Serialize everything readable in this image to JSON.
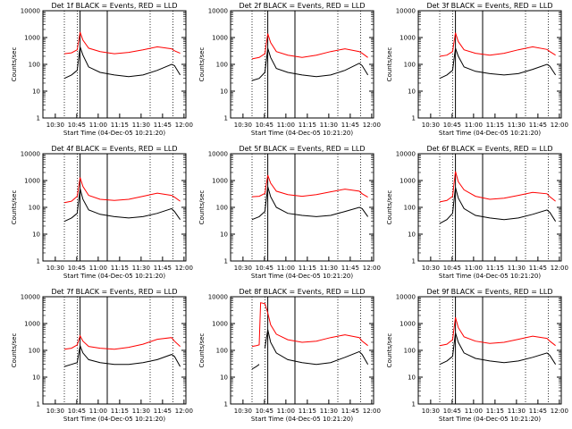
{
  "figure": {
    "title_template": "Det {n}f BLACK = Events, RED = LLD",
    "xlabel": "Start Time (04-Dec-05 10:21:20)",
    "ylabel": "Counts/sec"
  },
  "chart_data": [
    {
      "type": "line",
      "title": "Det 1f BLACK = Events, RED = LLD",
      "xlabel": "Start Time (04-Dec-05 10:21:20)",
      "ylabel": "Counts/sec",
      "yscale": "log",
      "ylim": [
        1,
        10000
      ],
      "xticks": [
        "10:30",
        "10:45",
        "11:00",
        "11:15",
        "11:30",
        "11:45",
        "12:00"
      ],
      "yticks": [
        "1",
        "10",
        "100",
        "1000",
        "10000"
      ],
      "x_minutes": [
        35,
        40,
        44,
        46,
        48,
        52,
        60,
        70,
        80,
        90,
        100,
        110,
        112,
        116
      ],
      "series": [
        {
          "name": "LLD",
          "color": "#ff0000",
          "values": [
            250,
            270,
            350,
            1600,
            800,
            400,
            300,
            250,
            280,
            350,
            450,
            380,
            320,
            260
          ]
        },
        {
          "name": "Events",
          "color": "#000000",
          "values": [
            30,
            40,
            60,
            450,
            220,
            80,
            50,
            40,
            35,
            40,
            60,
            100,
            90,
            40
          ]
        }
      ]
    },
    {
      "type": "line",
      "title": "Det 2f BLACK = Events, RED = LLD",
      "xlabel": "Start Time (04-Dec-05 10:21:20)",
      "ylabel": "Counts/sec",
      "yscale": "log",
      "ylim": [
        1,
        10000
      ],
      "xticks": [
        "10:30",
        "10:45",
        "11:00",
        "11:15",
        "11:30",
        "11:45",
        "12:00"
      ],
      "yticks": [
        "1",
        "10",
        "100",
        "1000",
        "10000"
      ],
      "x_minutes": [
        35,
        40,
        44,
        46,
        48,
        52,
        60,
        70,
        80,
        90,
        100,
        110,
        112,
        116
      ],
      "series": [
        {
          "name": "LLD",
          "color": "#ff0000",
          "values": [
            160,
            180,
            250,
            1400,
            650,
            300,
            220,
            180,
            220,
            300,
            380,
            300,
            260,
            180
          ]
        },
        {
          "name": "Events",
          "color": "#000000",
          "values": [
            25,
            30,
            50,
            400,
            180,
            70,
            50,
            40,
            35,
            40,
            60,
            110,
            90,
            40
          ]
        }
      ]
    },
    {
      "type": "line",
      "title": "Det 3f BLACK = Events, RED = LLD",
      "xlabel": "Start Time (04-Dec-05 10:21:20)",
      "ylabel": "Counts/sec",
      "yscale": "log",
      "ylim": [
        1,
        10000
      ],
      "xticks": [
        "10:30",
        "10:45",
        "11:00",
        "11:15",
        "11:30",
        "11:45",
        "12:00"
      ],
      "yticks": [
        "1",
        "10",
        "100",
        "1000",
        "10000"
      ],
      "x_minutes": [
        35,
        40,
        44,
        46,
        48,
        52,
        60,
        70,
        80,
        90,
        100,
        110,
        112,
        116
      ],
      "series": [
        {
          "name": "LLD",
          "color": "#ff0000",
          "values": [
            200,
            220,
            300,
            1500,
            700,
            350,
            260,
            220,
            260,
            350,
            450,
            360,
            300,
            220
          ]
        },
        {
          "name": "Events",
          "color": "#000000",
          "values": [
            30,
            40,
            60,
            400,
            200,
            80,
            55,
            45,
            40,
            45,
            65,
            100,
            85,
            40
          ]
        }
      ]
    },
    {
      "type": "line",
      "title": "Det 4f BLACK = Events, RED = LLD",
      "xlabel": "Start Time (04-Dec-05 10:21:20)",
      "ylabel": "Counts/sec",
      "yscale": "log",
      "ylim": [
        1,
        10000
      ],
      "xticks": [
        "10:30",
        "10:45",
        "11:00",
        "11:15",
        "11:30",
        "11:45",
        "12:00"
      ],
      "yticks": [
        "1",
        "10",
        "100",
        "1000",
        "10000"
      ],
      "x_minutes": [
        35,
        40,
        44,
        46,
        48,
        52,
        60,
        70,
        80,
        90,
        100,
        110,
        112,
        116
      ],
      "series": [
        {
          "name": "LLD",
          "color": "#ff0000",
          "values": [
            150,
            170,
            260,
            1300,
            600,
            280,
            200,
            180,
            200,
            260,
            340,
            280,
            240,
            170
          ]
        },
        {
          "name": "Events",
          "color": "#000000",
          "values": [
            30,
            40,
            60,
            500,
            200,
            80,
            55,
            45,
            40,
            45,
            60,
            90,
            70,
            35
          ]
        }
      ]
    },
    {
      "type": "line",
      "title": "Det 5f BLACK = Events, RED = LLD",
      "xlabel": "Start Time (04-Dec-05 10:21:20)",
      "ylabel": "Counts/sec",
      "yscale": "log",
      "ylim": [
        1,
        10000
      ],
      "xticks": [
        "10:30",
        "10:45",
        "11:00",
        "11:15",
        "11:30",
        "11:45",
        "12:00"
      ],
      "yticks": [
        "1",
        "10",
        "100",
        "1000",
        "10000"
      ],
      "x_minutes": [
        35,
        40,
        44,
        46,
        48,
        52,
        60,
        70,
        80,
        90,
        100,
        110,
        112,
        116
      ],
      "series": [
        {
          "name": "LLD",
          "color": "#ff0000",
          "values": [
            250,
            260,
            330,
            1600,
            800,
            400,
            300,
            260,
            300,
            380,
            480,
            400,
            320,
            240
          ]
        },
        {
          "name": "Events",
          "color": "#000000",
          "values": [
            35,
            45,
            70,
            600,
            250,
            100,
            60,
            50,
            45,
            50,
            70,
            100,
            90,
            45
          ]
        }
      ]
    },
    {
      "type": "line",
      "title": "Det 6f BLACK = Events, RED = LLD",
      "xlabel": "Start Time (04-Dec-05 10:21:20)",
      "ylabel": "Counts/sec",
      "yscale": "log",
      "ylim": [
        1,
        10000
      ],
      "xticks": [
        "10:30",
        "10:45",
        "11:00",
        "11:15",
        "11:30",
        "11:45",
        "12:00"
      ],
      "yticks": [
        "1",
        "10",
        "100",
        "1000",
        "10000"
      ],
      "x_minutes": [
        35,
        40,
        44,
        46,
        48,
        52,
        60,
        70,
        80,
        90,
        100,
        110,
        112,
        116
      ],
      "series": [
        {
          "name": "LLD",
          "color": "#ff0000",
          "values": [
            160,
            180,
            260,
            2200,
            900,
            450,
            260,
            200,
            220,
            280,
            360,
            320,
            250,
            170
          ]
        },
        {
          "name": "Events",
          "color": "#000000",
          "values": [
            25,
            35,
            60,
            550,
            220,
            90,
            50,
            40,
            35,
            40,
            55,
            80,
            65,
            30
          ]
        }
      ]
    },
    {
      "type": "line",
      "title": "Det 7f BLACK = Events, RED = LLD",
      "xlabel": "Start Time (04-Dec-05 10:21:20)",
      "ylabel": "Counts/sec",
      "yscale": "log",
      "ylim": [
        1,
        10000
      ],
      "xticks": [
        "10:30",
        "10:45",
        "11:00",
        "11:15",
        "11:30",
        "11:45",
        "12:00"
      ],
      "yticks": [
        "1",
        "10",
        "100",
        "1000",
        "10000"
      ],
      "x_minutes": [
        35,
        40,
        44,
        46,
        48,
        52,
        60,
        70,
        80,
        90,
        100,
        110,
        112,
        116
      ],
      "series": [
        {
          "name": "LLD",
          "color": "#ff0000",
          "values": [
            110,
            120,
            160,
            350,
            220,
            140,
            120,
            110,
            130,
            170,
            260,
            300,
            220,
            140
          ]
        },
        {
          "name": "Events",
          "color": "#000000",
          "values": [
            25,
            30,
            35,
            150,
            80,
            45,
            35,
            30,
            30,
            35,
            45,
            70,
            60,
            25
          ]
        }
      ]
    },
    {
      "type": "line",
      "title": "Det 8f BLACK = Events, RED = LLD",
      "xlabel": "Start Time (04-Dec-05 10:21:20)",
      "ylabel": "Counts/sec",
      "yscale": "log",
      "ylim": [
        1,
        10000
      ],
      "xticks": [
        "10:30",
        "10:45",
        "11:00",
        "11:15",
        "11:30",
        "11:45",
        "12:00"
      ],
      "yticks": [
        "1",
        "10",
        "100",
        "1000",
        "10000"
      ],
      "x_minutes": [
        35,
        38,
        40,
        41,
        44,
        46,
        48,
        52,
        60,
        70,
        80,
        90,
        100,
        110,
        112,
        116
      ],
      "series": [
        {
          "name": "LLD",
          "color": "#ff0000",
          "values": [
            140,
            150,
            160,
            6000,
            5500,
            2500,
            900,
            400,
            250,
            200,
            220,
            300,
            380,
            300,
            220,
            150
          ]
        },
        {
          "name": "Events",
          "color": "#000000",
          "values": [
            20,
            25,
            30,
            null,
            120,
            600,
            200,
            80,
            45,
            35,
            30,
            35,
            55,
            90,
            70,
            30
          ]
        }
      ]
    },
    {
      "type": "line",
      "title": "Det 9f BLACK = Events, RED = LLD",
      "xlabel": "Start Time (04-Dec-05 10:21:20)",
      "ylabel": "Counts/sec",
      "yscale": "log",
      "ylim": [
        1,
        10000
      ],
      "xticks": [
        "10:30",
        "10:45",
        "11:00",
        "11:15",
        "11:30",
        "11:45",
        "12:00"
      ],
      "yticks": [
        "1",
        "10",
        "100",
        "1000",
        "10000"
      ],
      "x_minutes": [
        35,
        40,
        44,
        46,
        48,
        52,
        60,
        70,
        80,
        90,
        100,
        110,
        112,
        116
      ],
      "series": [
        {
          "name": "LLD",
          "color": "#ff0000",
          "values": [
            150,
            170,
            250,
            1700,
            700,
            320,
            220,
            180,
            200,
            260,
            340,
            280,
            220,
            150
          ]
        },
        {
          "name": "Events",
          "color": "#000000",
          "values": [
            30,
            40,
            60,
            450,
            200,
            80,
            50,
            40,
            35,
            40,
            55,
            80,
            65,
            30
          ]
        }
      ]
    }
  ],
  "markers": {
    "dotted_minutes": [
      35,
      44,
      95,
      111
    ],
    "solid_minutes": [
      46,
      65
    ]
  }
}
